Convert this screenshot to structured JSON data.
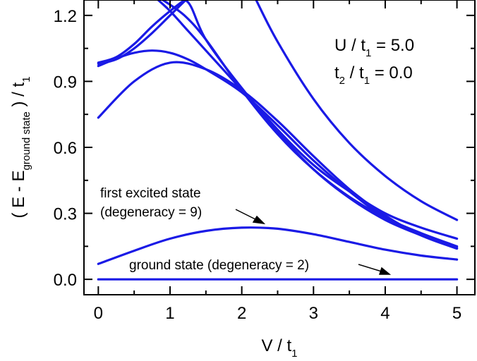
{
  "chart_data": {
    "type": "line",
    "xlabel": {
      "base": "V / t",
      "sub": "1"
    },
    "ylabel": {
      "prefix": "( E - E",
      "sub": "ground state",
      "suffix": " ) / t",
      "sub2": "1"
    },
    "xlim": [
      -0.2,
      5.25
    ],
    "ylim": [
      -0.07,
      1.27
    ],
    "xticks": [
      0,
      1,
      2,
      3,
      4,
      5
    ],
    "xtick_labels": [
      "0",
      "1",
      "2",
      "3",
      "4",
      "5"
    ],
    "yticks": [
      0.0,
      0.3,
      0.6,
      0.9,
      1.2
    ],
    "ytick_labels": [
      "0.0",
      "0.3",
      "0.6",
      "0.9",
      "1.2"
    ],
    "grid": false,
    "line_color": "#1a1ae6",
    "params": [
      {
        "a": "U / t",
        "a_sub": "1",
        "b": " = 5.0"
      },
      {
        "a": "t",
        "a_sub": "2",
        "a2": " / t",
        "a2_sub": "1",
        "b": " = 0.0"
      }
    ],
    "annotations": [
      {
        "lines": [
          "first excited state",
          "(degeneracy = 9)"
        ],
        "points_to": {
          "x": 2.3,
          "y": 0.24
        }
      },
      {
        "lines": [
          "ground state (degeneracy = 2)"
        ],
        "points_to": {
          "x": 4.0,
          "y": 0.0
        }
      }
    ],
    "series": [
      {
        "x": [
          0,
          0.5,
          1,
          1.5,
          2,
          2.5,
          3,
          3.5,
          4,
          4.5,
          5
        ],
        "y": [
          0,
          0,
          0,
          0,
          0,
          0,
          0,
          0,
          0,
          0,
          0
        ]
      },
      {
        "x": [
          0,
          0.5,
          1,
          1.5,
          2,
          2.5,
          3,
          3.5,
          4,
          4.5,
          5
        ],
        "y": [
          0.07,
          0.13,
          0.185,
          0.22,
          0.235,
          0.23,
          0.205,
          0.17,
          0.135,
          0.108,
          0.09
        ]
      },
      {
        "x": [
          0,
          0.5,
          1,
          1.5,
          2,
          2.5,
          3,
          3.5,
          4,
          4.5,
          5
        ],
        "y": [
          0.735,
          0.9,
          0.985,
          0.955,
          0.86,
          0.72,
          0.56,
          0.41,
          0.29,
          0.2,
          0.14
        ]
      },
      {
        "x": [
          0,
          0.3,
          0.5,
          0.75,
          1,
          1.25,
          1.5,
          2,
          2.5,
          3,
          3.5,
          4,
          4.5,
          5
        ],
        "y": [
          0.97,
          1.01,
          1.03,
          1.04,
          1.03,
          1.0,
          0.955,
          0.85,
          0.7,
          0.54,
          0.4,
          0.28,
          0.2,
          0.145
        ]
      },
      {
        "x": [
          0,
          0.25,
          0.5,
          0.75,
          1,
          1.25
        ],
        "y": [
          0.98,
          1.0,
          1.05,
          1.12,
          1.2,
          1.28
        ]
      },
      {
        "x": [
          0,
          0.25,
          0.5,
          0.75,
          1,
          1.25,
          1.4
        ],
        "y": [
          0.985,
          1.01,
          1.07,
          1.15,
          1.22,
          1.28,
          1.3
        ]
      },
      {
        "x": [
          0.9,
          1.2,
          1.5,
          2,
          2.5,
          3,
          3.5,
          4,
          4.5,
          5
        ],
        "y": [
          1.27,
          1.2,
          1.09,
          0.86,
          0.66,
          0.5,
          0.375,
          0.28,
          0.21,
          0.15
        ]
      },
      {
        "x": [
          0.8,
          1.0,
          1.25,
          1.5,
          2,
          2.5,
          3,
          3.5,
          4,
          4.5,
          5
        ],
        "y": [
          1.28,
          1.22,
          1.13,
          1.04,
          0.86,
          0.67,
          0.5,
          0.37,
          0.27,
          0.2,
          0.14
        ]
      },
      {
        "x": [
          2.2,
          2.5,
          3,
          3.5,
          4,
          4.5,
          5
        ],
        "y": [
          1.27,
          1.08,
          0.82,
          0.62,
          0.47,
          0.355,
          0.27
        ]
      },
      {
        "x": [
          1.0,
          1.25,
          1.5,
          2,
          2.5,
          3,
          3.5,
          4,
          4.5,
          5
        ],
        "y": [
          1.27,
          1.26,
          1.09,
          0.87,
          0.68,
          0.52,
          0.4,
          0.3,
          0.235,
          0.185
        ]
      }
    ]
  }
}
